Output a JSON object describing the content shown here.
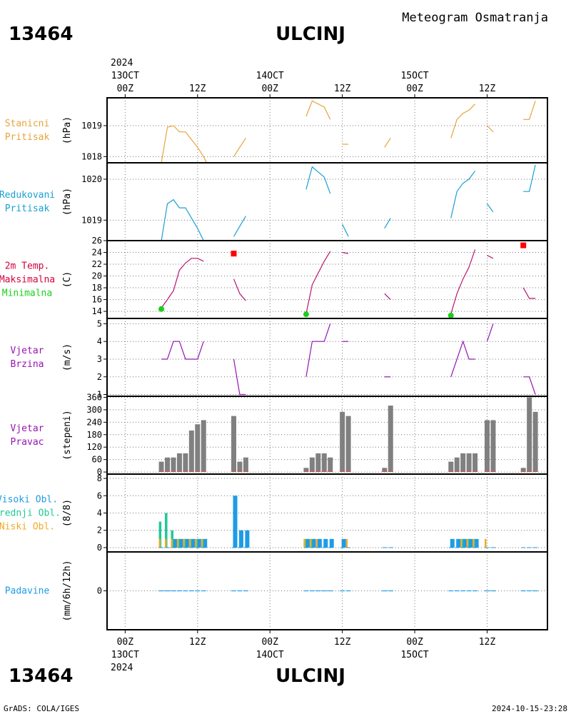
{
  "header": {
    "station_id": "13464",
    "station_name": "ULCINJ",
    "product": "Meteogram Osmatranja",
    "year": "2024"
  },
  "footer": {
    "station_id": "13464",
    "station_name": "ULCINJ",
    "credit": "GrADS: COLA/IGES",
    "timestamp": "2024-10-15-23:28",
    "year": "2024"
  },
  "time_axis": {
    "hours": [
      0,
      12,
      24,
      36,
      48,
      60
    ],
    "labels": [
      "00Z",
      "12Z",
      "00Z",
      "12Z",
      "00Z",
      "12Z"
    ],
    "dates": [
      {
        "hour": 0,
        "label": "13OCT"
      },
      {
        "hour": 24,
        "label": "14OCT"
      },
      {
        "hour": 48,
        "label": "15OCT"
      }
    ],
    "range": [
      -3,
      70
    ]
  },
  "panel_labels": {
    "stanicni": [
      "Stanicni",
      "Pritisak"
    ],
    "redukovani": [
      "Redukovani",
      "Pritisak"
    ],
    "temp": [
      "2m Temp.",
      "Maksimalna",
      "Minimalna"
    ],
    "brzina": [
      "Vjetar",
      "Brzina"
    ],
    "pravac": [
      "Vjetar",
      "Pravac"
    ],
    "oblaci": [
      "Visoki Obl.",
      "Srednji Obl.",
      "Niski Obl."
    ],
    "padavine": [
      "Padavine"
    ]
  },
  "units": {
    "stanicni": "(hPa)",
    "redukovani": "(hPa)",
    "temp": "(C)",
    "brzina": "(m/s)",
    "pravac": "(stepeni)",
    "oblaci": "(8/8)",
    "padavine": "(mm/6h/12h)"
  },
  "colors": {
    "stanicni": "#e8a33c",
    "redukovani": "#1aa0d2",
    "temp_label": "#d4003c",
    "temp_line": "#b8146e",
    "tmax": "#ff0000",
    "tmin": "#18d018",
    "wind": "#9614b4",
    "direction_bar": "#808080",
    "direction_base": "#e05050",
    "high_cloud": "#1e9be6",
    "mid_cloud": "#20c896",
    "low_cloud": "#f0aa28",
    "precip": "#1e9be6"
  },
  "chart_data": [
    {
      "panel": "stanicni_pritisak",
      "type": "line",
      "ylim": [
        1017.8,
        1019.9
      ],
      "yticks": [
        1018,
        1019
      ],
      "ytick_labels": [
        "1018",
        "1019"
      ],
      "segments": [
        [
          [
            6,
            1017.8
          ],
          [
            7,
            1018.95
          ],
          [
            8,
            1019.0
          ],
          [
            9,
            1018.8
          ],
          [
            10,
            1018.8
          ],
          [
            11,
            1018.55
          ],
          [
            12,
            1018.3
          ],
          [
            13,
            1018.0
          ],
          [
            13.5,
            1017.8
          ]
        ],
        [
          [
            18,
            1018.0
          ],
          [
            19,
            1018.3
          ],
          [
            20,
            1018.6
          ]
        ],
        [
          [
            30,
            1019.3
          ],
          [
            31,
            1019.8
          ],
          [
            33,
            1019.6
          ],
          [
            34,
            1019.2
          ]
        ],
        [
          [
            36,
            1018.4
          ],
          [
            37,
            1018.4
          ]
        ],
        [
          [
            43,
            1018.3
          ],
          [
            44,
            1018.6
          ]
        ],
        [
          [
            54,
            1018.6
          ],
          [
            55,
            1019.2
          ],
          [
            56,
            1019.4
          ],
          [
            57,
            1019.5
          ],
          [
            58,
            1019.7
          ]
        ],
        [
          [
            60,
            1019.0
          ],
          [
            61,
            1018.8
          ]
        ],
        [
          [
            66,
            1019.2
          ],
          [
            67,
            1019.2
          ],
          [
            68,
            1019.8
          ]
        ]
      ]
    },
    {
      "panel": "redukovani_pritisak",
      "type": "line",
      "ylim": [
        1018.5,
        1020.4
      ],
      "yticks": [
        1019,
        1020
      ],
      "ytick_labels": [
        "1019",
        "1020"
      ],
      "segments": [
        [
          [
            6,
            1018.5
          ],
          [
            7,
            1019.4
          ],
          [
            8,
            1019.5
          ],
          [
            9,
            1019.3
          ],
          [
            10,
            1019.3
          ],
          [
            11,
            1019.05
          ],
          [
            12,
            1018.8
          ],
          [
            13,
            1018.5
          ]
        ],
        [
          [
            18,
            1018.6
          ],
          [
            19,
            1018.85
          ],
          [
            20,
            1019.1
          ]
        ],
        [
          [
            30,
            1019.75
          ],
          [
            31,
            1020.3
          ],
          [
            33,
            1020.05
          ],
          [
            34,
            1019.65
          ]
        ],
        [
          [
            36,
            1018.9
          ],
          [
            37,
            1018.6
          ]
        ],
        [
          [
            43,
            1018.8
          ],
          [
            44,
            1019.05
          ]
        ],
        [
          [
            54,
            1019.05
          ],
          [
            55,
            1019.7
          ],
          [
            56,
            1019.9
          ],
          [
            57,
            1020.0
          ],
          [
            58,
            1020.2
          ]
        ],
        [
          [
            60,
            1019.4
          ],
          [
            61,
            1019.2
          ]
        ],
        [
          [
            66,
            1019.7
          ],
          [
            67,
            1019.7
          ],
          [
            68,
            1020.35
          ]
        ]
      ]
    },
    {
      "panel": "temperatura",
      "type": "line",
      "ylim": [
        12.8,
        26
      ],
      "yticks": [
        14,
        16,
        18,
        20,
        22,
        24,
        26
      ],
      "ytick_labels": [
        "14",
        "16",
        "18",
        "20",
        "22",
        "24",
        "26"
      ],
      "segments": [
        [
          [
            6,
            14.6
          ],
          [
            7,
            16.0
          ],
          [
            8,
            17.5
          ],
          [
            9,
            21.0
          ],
          [
            10,
            22.2
          ],
          [
            11,
            23.0
          ],
          [
            12,
            23.0
          ],
          [
            13,
            22.5
          ]
        ],
        [
          [
            18,
            19.5
          ],
          [
            19,
            17.0
          ],
          [
            20,
            15.8
          ]
        ],
        [
          [
            30,
            13.6
          ],
          [
            31,
            18.5
          ],
          [
            32,
            20.5
          ],
          [
            33,
            22.5
          ],
          [
            34,
            24.2
          ]
        ],
        [
          [
            36,
            24.0
          ],
          [
            37,
            23.8
          ]
        ],
        [
          [
            43,
            17.0
          ],
          [
            44,
            16.0
          ]
        ],
        [
          [
            54,
            13.6
          ],
          [
            55,
            17.0
          ],
          [
            56,
            19.5
          ],
          [
            57,
            21.5
          ],
          [
            58,
            24.5
          ]
        ],
        [
          [
            60,
            23.5
          ],
          [
            61,
            23.0
          ]
        ],
        [
          [
            66,
            18.0
          ],
          [
            67,
            16.2
          ],
          [
            68,
            16.2
          ]
        ]
      ],
      "tmax": [
        {
          "x": 18,
          "y": 23.8
        },
        {
          "x": 66,
          "y": 25.2
        }
      ],
      "tmin": [
        {
          "x": 6,
          "y": 14.4
        },
        {
          "x": 30,
          "y": 13.5
        },
        {
          "x": 54,
          "y": 13.3
        }
      ]
    },
    {
      "panel": "vjetar_brzina",
      "type": "line",
      "ylim": [
        0.9,
        5.3
      ],
      "yticks": [
        1,
        2,
        3,
        4,
        5
      ],
      "ytick_labels": [
        "1",
        "2",
        "3",
        "4",
        "5"
      ],
      "segments": [
        [
          [
            6,
            3
          ],
          [
            7,
            3
          ],
          [
            8,
            4
          ],
          [
            9,
            4
          ],
          [
            10,
            3
          ],
          [
            11,
            3
          ],
          [
            12,
            3
          ],
          [
            13,
            4
          ]
        ],
        [
          [
            18,
            3
          ],
          [
            19,
            1
          ],
          [
            20,
            1
          ]
        ],
        [
          [
            30,
            2
          ],
          [
            31,
            4
          ],
          [
            32,
            4
          ],
          [
            33,
            4
          ],
          [
            34,
            5
          ]
        ],
        [
          [
            36,
            4
          ],
          [
            37,
            4
          ]
        ],
        [
          [
            43,
            2
          ],
          [
            44,
            2
          ]
        ],
        [
          [
            54,
            2
          ],
          [
            55,
            3
          ],
          [
            56,
            4
          ],
          [
            57,
            3
          ],
          [
            58,
            3
          ]
        ],
        [
          [
            60,
            4
          ],
          [
            61,
            5
          ]
        ],
        [
          [
            66,
            2
          ],
          [
            67,
            2
          ],
          [
            68,
            1
          ]
        ]
      ]
    },
    {
      "panel": "vjetar_pravac",
      "type": "bar",
      "ylim": [
        -10,
        365
      ],
      "yticks": [
        0,
        60,
        120,
        180,
        240,
        300,
        360
      ],
      "ytick_labels": [
        "0",
        "60",
        "120",
        "180",
        "240",
        "300",
        "360"
      ],
      "x": [
        6,
        7,
        8,
        9,
        10,
        11,
        12,
        13,
        18,
        19,
        20,
        30,
        31,
        32,
        33,
        34,
        36,
        37,
        43,
        44,
        54,
        55,
        56,
        57,
        58,
        60,
        61,
        66,
        67,
        68
      ],
      "values": [
        50,
        70,
        70,
        90,
        90,
        200,
        230,
        250,
        270,
        50,
        70,
        20,
        70,
        90,
        90,
        70,
        290,
        270,
        20,
        320,
        50,
        70,
        90,
        90,
        90,
        250,
        250,
        20,
        360,
        290
      ]
    },
    {
      "panel": "oblaci",
      "type": "bar",
      "ylim": [
        -0.5,
        8.5
      ],
      "yticks": [
        0,
        2,
        4,
        6,
        8
      ],
      "ytick_labels": [
        "0",
        "2",
        "4",
        "6",
        "8"
      ],
      "x": [
        6,
        7,
        8,
        9,
        10,
        11,
        12,
        13,
        18,
        19,
        20,
        30,
        31,
        32,
        33,
        34,
        36,
        37,
        43,
        44,
        54,
        55,
        56,
        57,
        58,
        60,
        61,
        66,
        67,
        68
      ],
      "series": [
        {
          "key": "high",
          "values": [
            0,
            0,
            1,
            1,
            1,
            1,
            1,
            1,
            6,
            2,
            2,
            1,
            1,
            1,
            1,
            1,
            1,
            0,
            0,
            0,
            1,
            1,
            1,
            1,
            1,
            0,
            0,
            0,
            0,
            0
          ]
        },
        {
          "key": "mid",
          "values": [
            3,
            4,
            2,
            1,
            1,
            1,
            1,
            1,
            0,
            0,
            0,
            1,
            1,
            0,
            0,
            0,
            0,
            0,
            0,
            0,
            0,
            0,
            1,
            1,
            1,
            0,
            0,
            0,
            0,
            0
          ]
        },
        {
          "key": "low",
          "values": [
            1,
            1,
            1,
            1,
            1,
            1,
            1,
            1,
            0,
            0,
            0,
            1,
            1,
            1,
            0,
            0,
            0,
            1,
            0,
            0,
            0,
            0,
            1,
            1,
            1,
            1,
            0,
            0,
            0,
            0
          ]
        }
      ]
    },
    {
      "panel": "padavine",
      "type": "bar",
      "ylim": [
        -1,
        1
      ],
      "yticks": [
        0
      ],
      "ytick_labels": [
        "0"
      ],
      "x": [
        6,
        7,
        8,
        9,
        10,
        11,
        12,
        13,
        18,
        19,
        20,
        30,
        31,
        32,
        33,
        34,
        36,
        37,
        43,
        44,
        54,
        55,
        56,
        57,
        58,
        60,
        61,
        66,
        67,
        68
      ],
      "values": [
        0,
        0,
        0,
        0,
        0,
        0,
        0,
        0,
        0,
        0,
        0,
        0,
        0,
        0,
        0,
        0,
        0,
        0,
        0,
        0,
        0,
        0,
        0,
        0,
        0,
        0,
        0,
        0,
        0,
        0
      ]
    }
  ]
}
